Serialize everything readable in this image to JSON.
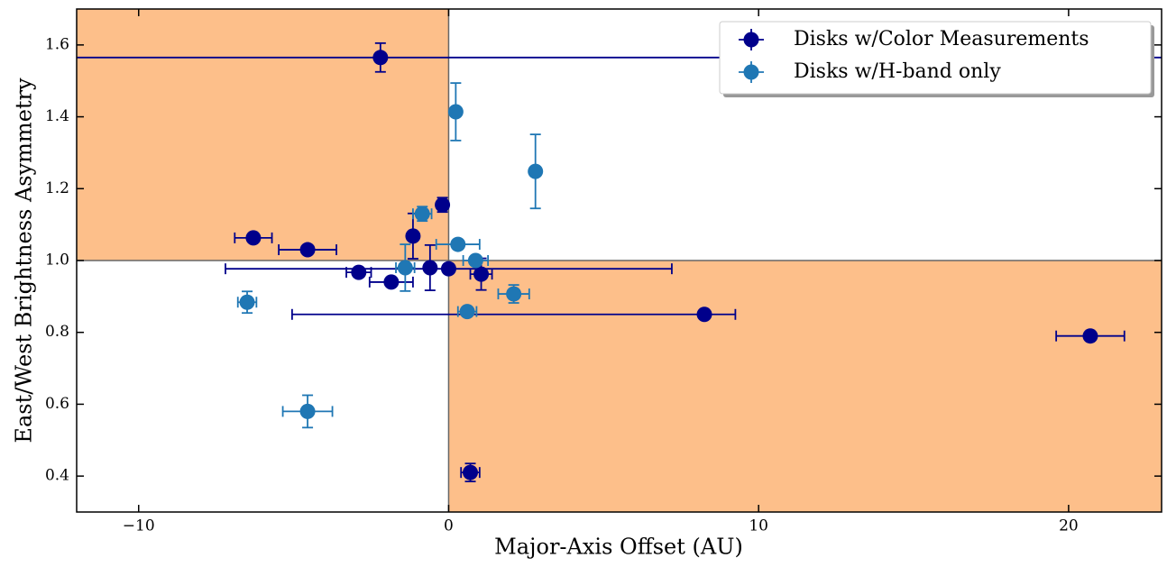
{
  "chart_data": {
    "type": "scatter",
    "xlabel": "Major-Axis Offset (AU)",
    "ylabel": "East/West Brightness Asymmetry",
    "xlim": [
      -12,
      23
    ],
    "ylim": [
      0.3,
      1.7
    ],
    "xticks": [
      {
        "value": -10,
        "label": "−10"
      },
      0,
      10,
      20
    ],
    "yticks": [
      0.4,
      0.6,
      0.8,
      {
        "value": 1,
        "label": "1.0"
      },
      1.2,
      1.4,
      1.6
    ],
    "reference_x": 0,
    "reference_y": 1,
    "shade_color": "#fdbf8a",
    "legend": "upper right",
    "series": [
      {
        "name": "Disks w/Color Measurements",
        "color": "#00008b",
        "x": [
          -2.2,
          -0.2,
          -1.15,
          -6.3,
          -4.55,
          -2.9,
          -1.85,
          -0.6,
          0,
          1.05,
          8.25,
          20.7,
          0.7
        ],
        "values": [
          1.565,
          1.155,
          1.068,
          1.063,
          1.03,
          0.967,
          0.94,
          0.98,
          0.977,
          0.962,
          0.85,
          0.79,
          0.41
        ],
        "xerr": [
          30,
          0,
          0,
          0.6,
          0.93,
          0.4,
          0.7,
          0,
          7.2,
          0.35,
          [
            13.3,
            1.0
          ],
          1.1,
          0.3
        ],
        "yerr": [
          0.04,
          0.02,
          0.063,
          0.01,
          0.01,
          0.01,
          0.01,
          0.063,
          0.01,
          0.044,
          0.01,
          0.01,
          0.025
        ]
      },
      {
        "name": "Disks w/H-band only",
        "color": "#1f77b4",
        "x": [
          0.23,
          2.8,
          -0.85,
          0.3,
          -1.4,
          0.87,
          2.1,
          -6.5,
          0.6,
          -4.55
        ],
        "values": [
          1.414,
          1.248,
          1.13,
          1.045,
          0.98,
          1.0,
          0.907,
          0.884,
          0.858,
          0.58
        ],
        "xerr": [
          0,
          0,
          0.3,
          0.7,
          0.3,
          0.4,
          0.5,
          0.3,
          0.3,
          0.8
        ],
        "yerr": [
          0.08,
          0.103,
          0.02,
          0.01,
          0.065,
          0.01,
          0.025,
          0.03,
          0.01,
          0.045
        ]
      }
    ]
  }
}
